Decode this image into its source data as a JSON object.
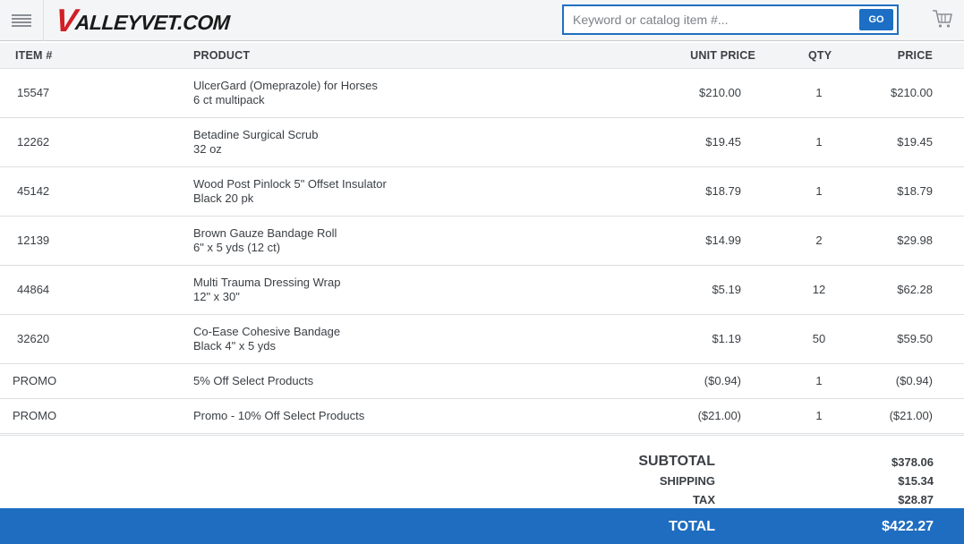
{
  "header": {
    "logo_v": "V",
    "logo_rest": "ALLEYVET.COM",
    "search_placeholder": "Keyword or catalog item #...",
    "go_label": "GO"
  },
  "table": {
    "columns": {
      "item": "ITEM #",
      "product": "PRODUCT",
      "unit_price": "UNIT PRICE",
      "qty": "QTY",
      "price": "PRICE"
    },
    "rows": [
      {
        "item": "15547",
        "name": "UlcerGard (Omeprazole) for Horses",
        "variant": "6 ct multipack",
        "unit_price": "$210.00",
        "qty": "1",
        "price": "$210.00"
      },
      {
        "item": "12262",
        "name": "Betadine Surgical Scrub",
        "variant": "32 oz",
        "unit_price": "$19.45",
        "qty": "1",
        "price": "$19.45"
      },
      {
        "item": "45142",
        "name": "Wood Post Pinlock 5\" Offset Insulator",
        "variant": "Black 20 pk",
        "unit_price": "$18.79",
        "qty": "1",
        "price": "$18.79"
      },
      {
        "item": "12139",
        "name": "Brown Gauze Bandage Roll",
        "variant": "6\" x 5 yds (12 ct)",
        "unit_price": "$14.99",
        "qty": "2",
        "price": "$29.98"
      },
      {
        "item": "44864",
        "name": "Multi Trauma Dressing Wrap",
        "variant": "12\" x 30\"",
        "unit_price": "$5.19",
        "qty": "12",
        "price": "$62.28"
      },
      {
        "item": "32620",
        "name": "Co-Ease Cohesive Bandage",
        "variant": "Black 4\" x 5 yds",
        "unit_price": "$1.19",
        "qty": "50",
        "price": "$59.50"
      }
    ],
    "promos": [
      {
        "item": "PROMO",
        "name": "5% Off Select Products",
        "unit_price": "($0.94)",
        "qty": "1",
        "price": "($0.94)"
      },
      {
        "item": "PROMO",
        "name": "Promo - 10% Off Select Products",
        "unit_price": "($21.00)",
        "qty": "1",
        "price": "($21.00)"
      }
    ]
  },
  "totals": {
    "subtotal_label": "SUBTOTAL",
    "subtotal": "$378.06",
    "shipping_label": "SHIPPING",
    "shipping": "$15.34",
    "tax_label": "TAX",
    "tax": "$28.87",
    "total_label": "TOTAL",
    "total": "$422.27"
  },
  "colors": {
    "accent": "#1f6dc0",
    "logo_red": "#d11f26"
  }
}
